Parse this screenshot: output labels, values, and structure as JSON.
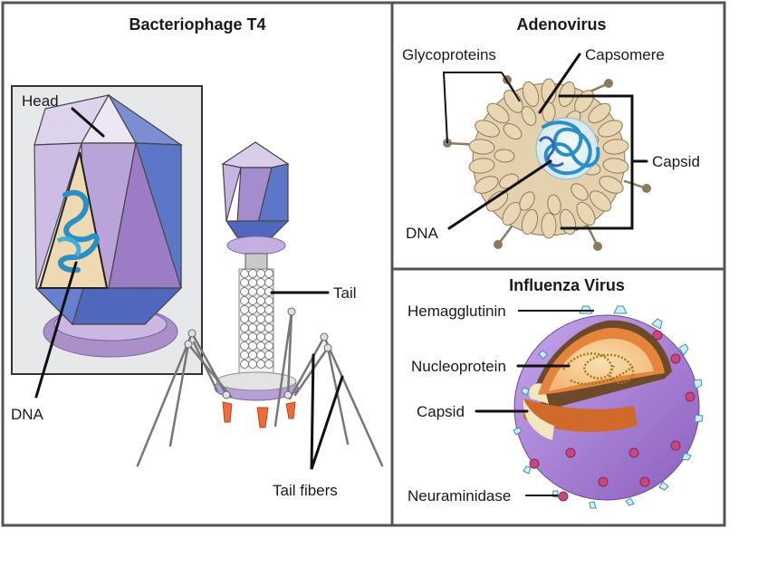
{
  "panels": {
    "t4": {
      "title": "Bacteriophage T4",
      "labels": {
        "head": "Head",
        "dna": "DNA",
        "tail": "Tail",
        "tail_fibers": "Tail fibers"
      }
    },
    "adeno": {
      "title": "Adenovirus",
      "labels": {
        "glycoproteins": "Glycoproteins",
        "capsomere": "Capsomere",
        "capsid": "Capsid",
        "dna": "DNA"
      }
    },
    "influenza": {
      "title": "Influenza Virus",
      "labels": {
        "hemagglutinin": "Hemagglutinin",
        "nucleoprotein": "Nucleoprotein",
        "capsid": "Capsid",
        "neuraminidase": "Neuraminidase"
      }
    }
  },
  "colors": {
    "frame": "#555555",
    "capsid_purple": "#a98bc6",
    "capsid_blue": "#5b78c7",
    "dna_blue": "#2a8fc4",
    "capsomere_tan": "#e9d6b4",
    "envelope_purple": "#a57bd1",
    "core_orange": "#e4843d"
  }
}
